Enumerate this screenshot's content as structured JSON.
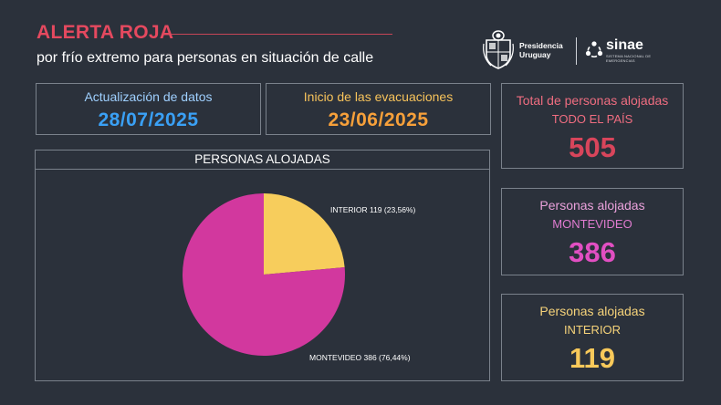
{
  "header": {
    "title": "ALERTA ROJA",
    "subtitle": "por frío extremo para personas en situación de calle"
  },
  "logos": {
    "presidencia_line1": "Presidencia",
    "presidencia_line2": "Uruguay",
    "sinae_name": "sinae",
    "sinae_sub": "SISTEMA NACIONAL DE EMERGENCIAS"
  },
  "dates": {
    "actualizacion": {
      "label": "Actualización de datos",
      "value": "28/07/2025"
    },
    "inicio": {
      "label": "Inicio de las evacuaciones",
      "value": "23/06/2025"
    }
  },
  "stats": {
    "total": {
      "label": "Total de personas alojadas",
      "sub": "TODO EL PAÍS",
      "value": "505"
    },
    "montevideo": {
      "label": "Personas alojadas",
      "sub": "MONTEVIDEO",
      "value": "386"
    },
    "interior": {
      "label": "Personas alojadas",
      "sub": "INTERIOR",
      "value": "119"
    }
  },
  "colors": {
    "background": "#2b313b",
    "alert_red": "#e5495f",
    "montevideo": "#d2389e",
    "interior": "#f7cd5c"
  },
  "chart_data": {
    "type": "pie",
    "title": "PERSONAS ALOJADAS",
    "slices": [
      {
        "name": "INTERIOR",
        "value": 119,
        "label": "INTERIOR 119 (23,56%)",
        "color": "#f7cd5c"
      },
      {
        "name": "MONTEVIDEO",
        "value": 386,
        "label": "MONTEVIDEO 386 (76,44%)",
        "color": "#d2389e"
      }
    ]
  }
}
